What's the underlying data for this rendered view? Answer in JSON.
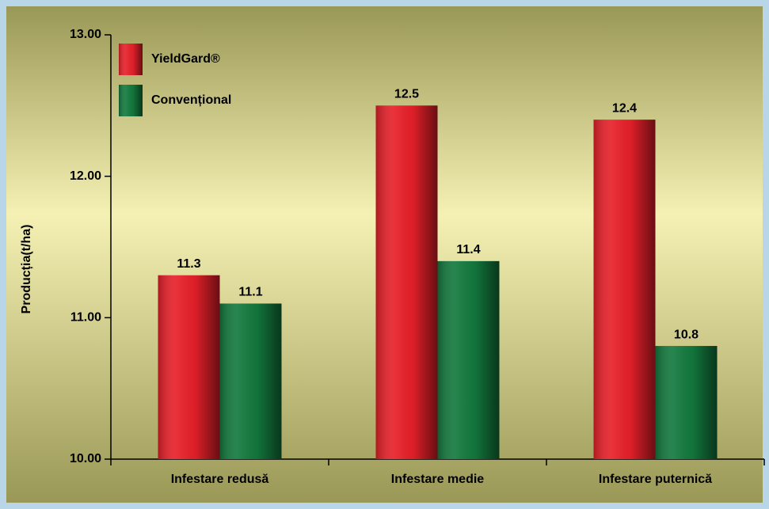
{
  "chart_data": {
    "type": "bar",
    "y_label": "Producția(t/ha)",
    "categories": [
      "Infestare redusă",
      "Infestare medie",
      "Infestare puternică"
    ],
    "series": [
      {
        "name": "YieldGard®",
        "color": "#e8202a",
        "values": [
          11.3,
          12.5,
          12.4
        ]
      },
      {
        "name": "Convențional",
        "color": "#137a3e",
        "values": [
          11.1,
          11.4,
          10.8
        ]
      }
    ],
    "ylim": [
      10,
      13
    ],
    "yticks": [
      {
        "value": 10,
        "label": "10.00"
      },
      {
        "value": 11,
        "label": "11.00"
      },
      {
        "value": 12,
        "label": "12.00"
      },
      {
        "value": 13,
        "label": "13.00"
      }
    ],
    "legend": "upper left"
  }
}
